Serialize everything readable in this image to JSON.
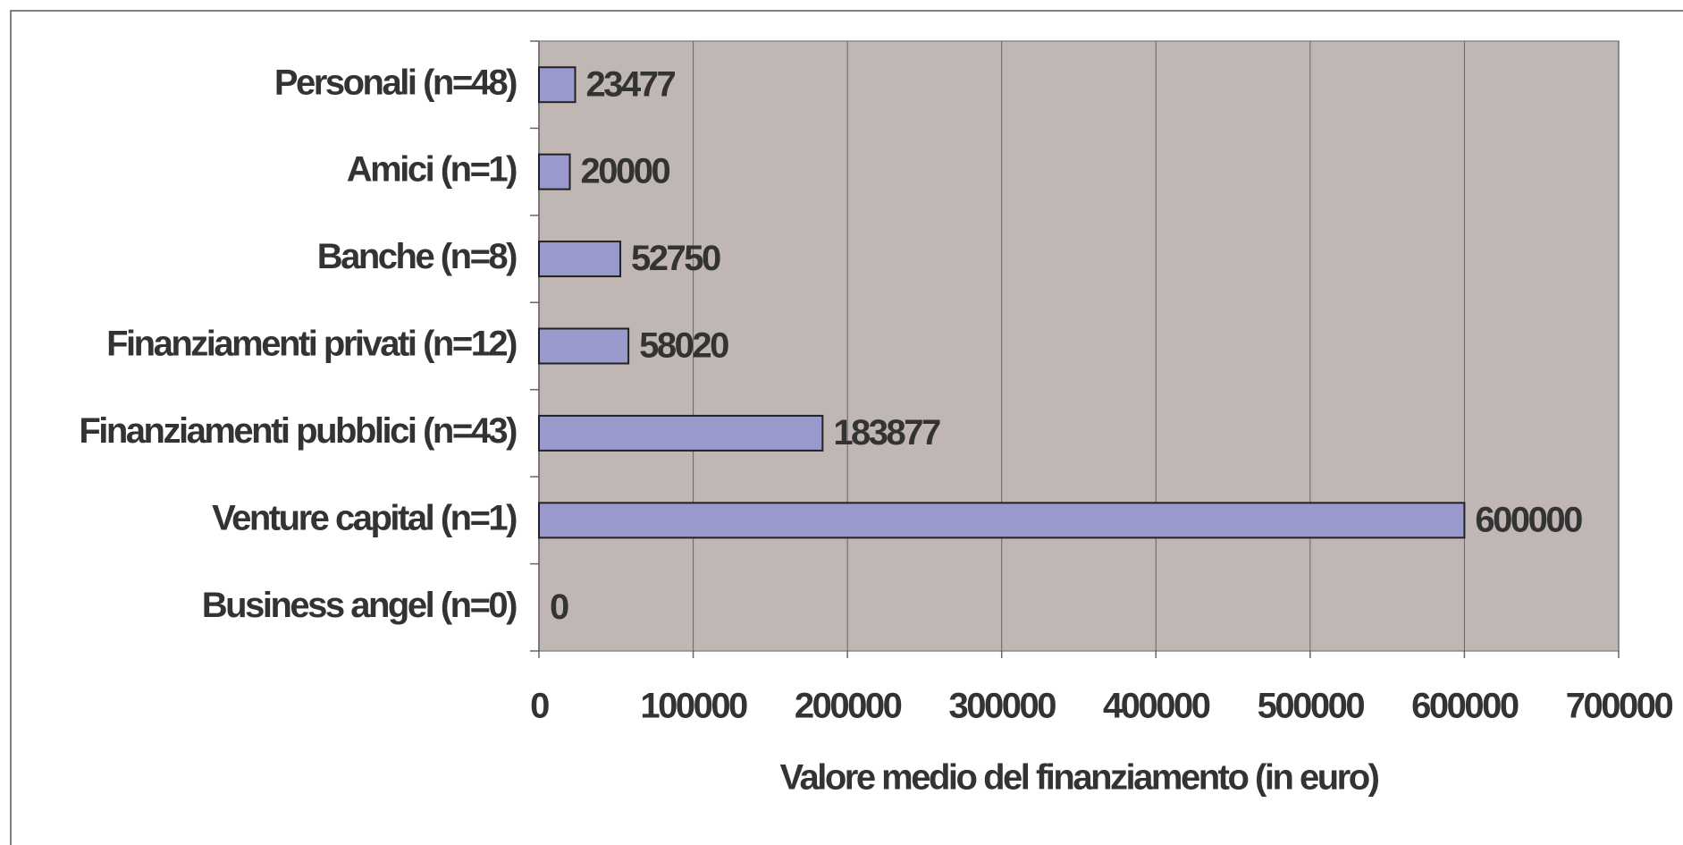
{
  "chart_data": {
    "type": "bar",
    "orientation": "horizontal",
    "x_label": "Valore medio del finanziamento (in euro)",
    "categories": [
      "Personali (n=48)",
      "Amici (n=1)",
      "Banche (n=8)",
      "Finanziamenti privati (n=12)",
      "Finanziamenti pubblici (n=43)",
      "Venture capital (n=1)",
      "Business angel (n=0)"
    ],
    "values": [
      23477,
      20000,
      52750,
      58020,
      183877,
      600000,
      0
    ],
    "color": "#9999cc",
    "plot_background": "#c0b7b4",
    "xlim": [
      0,
      700000
    ],
    "xticks": [
      0,
      100000,
      200000,
      300000,
      400000,
      500000,
      600000,
      700000
    ],
    "grid": true
  }
}
